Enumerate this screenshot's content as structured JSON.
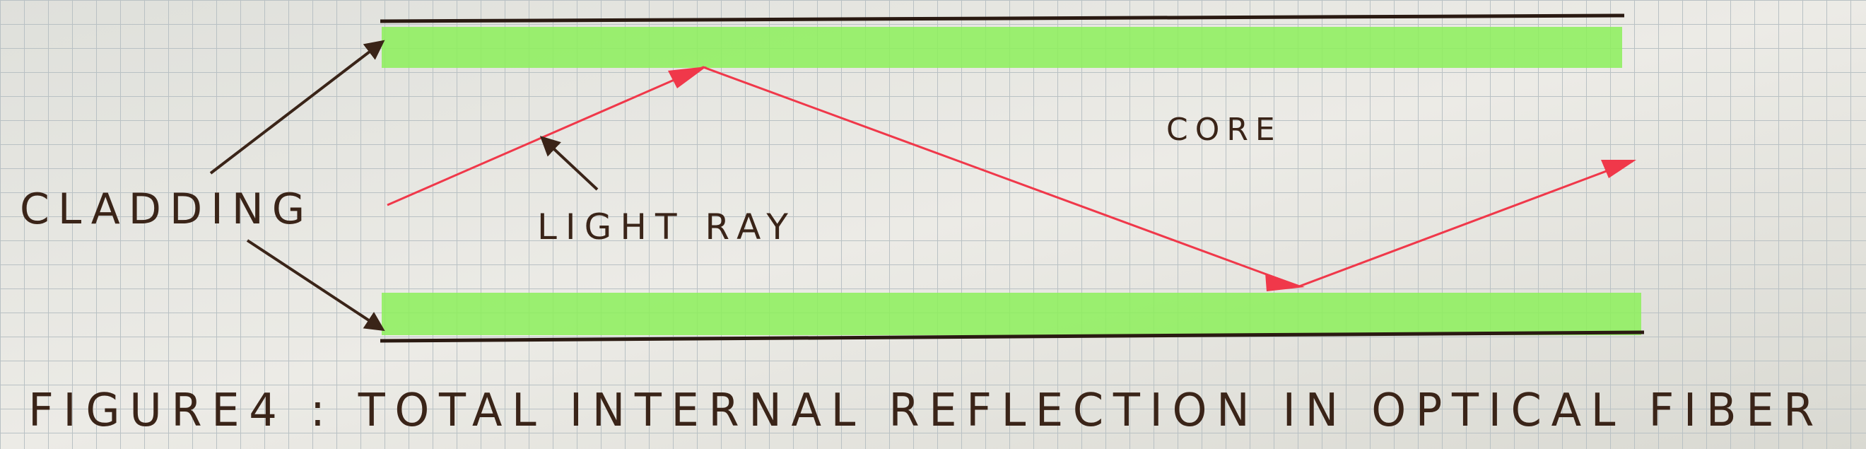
{
  "labels": {
    "cladding": "CLADDING",
    "light_ray": "LIGHT RAY",
    "core": "CORE"
  },
  "caption": "FIGURE4 : TOTAL INTERNAL REFLECTION IN OPTICAL FIBER",
  "colors": {
    "paper": "#e4e4de",
    "grid": "#b9c1c4",
    "cladding_fill": "#8cf05a",
    "ink": "#3a2418",
    "ray": "#f0384a"
  }
}
